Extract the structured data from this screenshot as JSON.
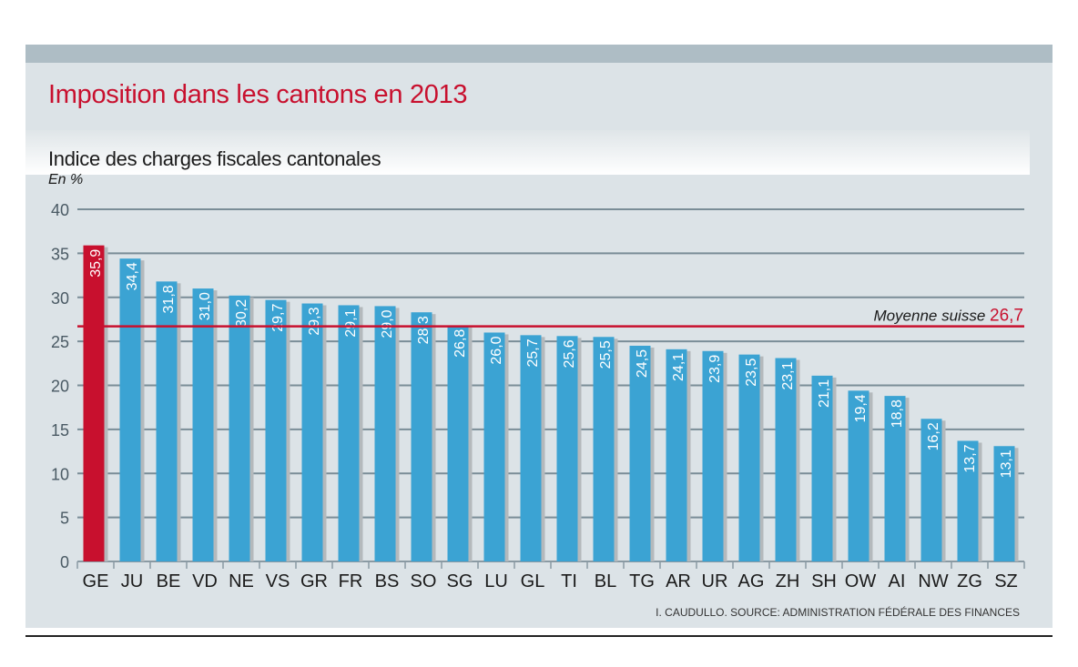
{
  "chart_data": {
    "type": "bar",
    "title": "Imposition dans les cantons en 2013",
    "subtitle": "Indice des charges fiscales cantonales",
    "ylabel": "En %",
    "ylim": [
      0,
      40
    ],
    "yticks": [
      0,
      5,
      10,
      15,
      20,
      25,
      30,
      35,
      40
    ],
    "grid": true,
    "categories": [
      "GE",
      "JU",
      "BE",
      "VD",
      "NE",
      "VS",
      "GR",
      "FR",
      "BS",
      "SO",
      "SG",
      "LU",
      "GL",
      "TI",
      "BL",
      "TG",
      "AR",
      "UR",
      "AG",
      "ZH",
      "SH",
      "OW",
      "AI",
      "NW",
      "ZG",
      "SZ"
    ],
    "values": [
      35.9,
      34.4,
      31.8,
      31.0,
      30.2,
      29.7,
      29.3,
      29.1,
      29.0,
      28.3,
      26.8,
      26.0,
      25.7,
      25.6,
      25.5,
      24.5,
      24.1,
      23.9,
      23.5,
      23.1,
      21.1,
      19.4,
      18.8,
      16.2,
      13.7,
      13.1
    ],
    "value_labels": [
      "35,9",
      "34,4",
      "31,8",
      "31,0",
      "30,2",
      "29,7",
      "29,3",
      "29,1",
      "29,0",
      "28,3",
      "26,8",
      "26,0",
      "25,7",
      "25,6",
      "25,5",
      "24,5",
      "24,1",
      "23,9",
      "23,5",
      "23,1",
      "21,1",
      "19,4",
      "18,8",
      "16,2",
      "13,7",
      "13,1"
    ],
    "highlight": "GE",
    "reference_line": {
      "label": "Moyenne suisse",
      "value": 26.7,
      "value_label": "26,7"
    },
    "source": "I. CAUDULLO. SOURCE: ADMINISTRATION FÉDÉRALE DES FINANCES",
    "colors": {
      "bar": "#3ba3d3",
      "highlight": "#c8102e",
      "reference": "#c8102e",
      "grid": "#7a8d97"
    }
  }
}
